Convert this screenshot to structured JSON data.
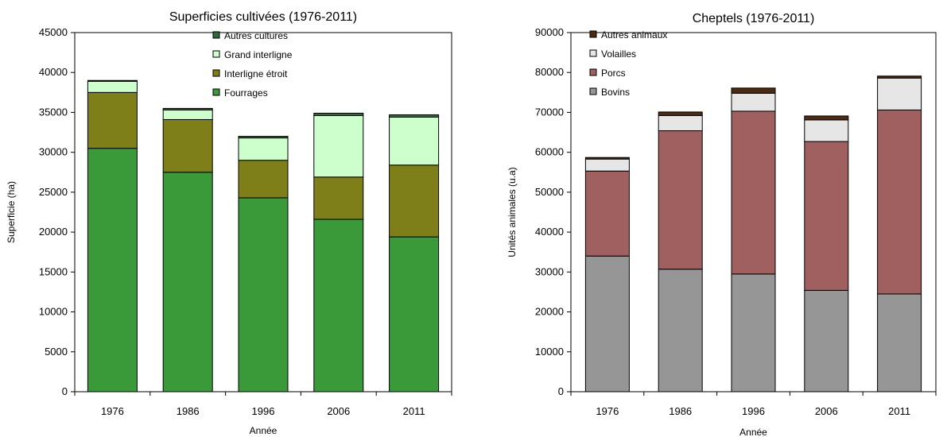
{
  "chart_data": [
    {
      "type": "bar",
      "stacked": true,
      "title": "Superficies cultivées (1976-2011)",
      "xlabel": "Année",
      "ylabel": "Superficie (ha)",
      "ylim": [
        0,
        45000
      ],
      "yticks": [
        0,
        5000,
        10000,
        15000,
        20000,
        25000,
        30000,
        35000,
        40000,
        45000
      ],
      "categories": [
        "1976",
        "1986",
        "1996",
        "2006",
        "2011"
      ],
      "grid": false,
      "legend_position": "top-right",
      "series": [
        {
          "name": "Fourrages",
          "color": "#3a9a3a",
          "values": [
            30500,
            27500,
            24300,
            21600,
            19400
          ]
        },
        {
          "name": "Interligne étroit",
          "color": "#7f7f1a",
          "values": [
            7000,
            6600,
            4700,
            5300,
            9000
          ]
        },
        {
          "name": "Grand interligne",
          "color": "#ccffcc",
          "values": [
            1400,
            1200,
            2800,
            7700,
            6000
          ]
        },
        {
          "name": "Autres cultures",
          "color": "#2e6b3a",
          "values": [
            100,
            200,
            200,
            300,
            300
          ]
        }
      ]
    },
    {
      "type": "bar",
      "stacked": true,
      "title": "Cheptels (1976-2011)",
      "xlabel": "Année",
      "ylabel": "Unités animales (u.a)",
      "ylim": [
        0,
        90000
      ],
      "yticks": [
        0,
        10000,
        20000,
        30000,
        40000,
        50000,
        60000,
        70000,
        80000,
        90000
      ],
      "categories": [
        "1976",
        "1986",
        "1996",
        "2006",
        "2011"
      ],
      "grid": false,
      "legend_position": "top-left",
      "series": [
        {
          "name": "Bovins",
          "color": "#969696",
          "values": [
            34000,
            30700,
            29500,
            25400,
            24500
          ]
        },
        {
          "name": "Porcs",
          "color": "#a06060",
          "values": [
            21300,
            34700,
            40800,
            37300,
            46100
          ]
        },
        {
          "name": "Volailles",
          "color": "#e6e6e6",
          "values": [
            3000,
            3800,
            4500,
            5400,
            8000
          ]
        },
        {
          "name": "Autres animaux",
          "color": "#4d2a10",
          "values": [
            400,
            900,
            1300,
            1000,
            500
          ]
        }
      ]
    }
  ]
}
